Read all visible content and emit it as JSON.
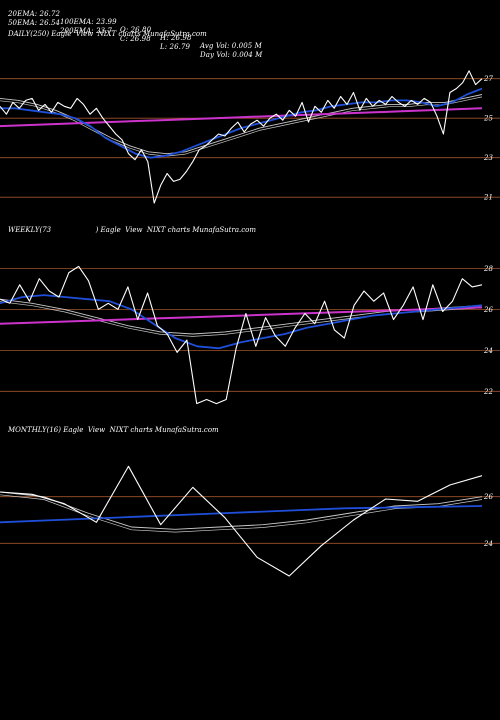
{
  "header": {
    "row1": [
      "20EMA: 26.72",
      "100EMA: 23.99",
      "O: 26.80",
      "H: 26.98",
      "Avg Vol: 0.005 M"
    ],
    "row2": [
      "50EMA: 26.54",
      "200EMA: 23.7",
      "C: 26.98",
      "L: 26.79",
      "Day Vol: 0.004 M"
    ]
  },
  "colors": {
    "background": "#000000",
    "price": "#ffffff",
    "ema_fast": "#1f4fd8",
    "ema_slow": "#cc33cc",
    "guide": "#a0522d",
    "avg": "#c8c8c8"
  },
  "chart_data": [
    {
      "type": "line",
      "title": "DAILY(250) Eagle  View  NIXT charts MunafaSutra.com",
      "ticks": [
        "27",
        "25",
        "23",
        "21"
      ],
      "tick_values": [
        27,
        25,
        23,
        21
      ],
      "ylim": [
        20.2,
        28.3
      ],
      "series": [
        {
          "role": "price",
          "values": [
            25.6,
            25.2,
            25.8,
            25.5,
            25.9,
            26.0,
            25.4,
            25.7,
            25.3,
            25.8,
            25.6,
            25.5,
            26.0,
            25.7,
            25.2,
            25.5,
            25.0,
            24.6,
            24.2,
            23.9,
            23.2,
            22.9,
            23.4,
            22.8,
            20.7,
            21.6,
            22.2,
            21.8,
            21.9,
            22.3,
            22.8,
            23.4,
            23.6,
            23.9,
            24.2,
            24.1,
            24.5,
            24.8,
            24.3,
            24.7,
            24.9,
            24.6,
            25.0,
            25.2,
            24.9,
            25.4,
            25.1,
            25.8,
            24.8,
            25.6,
            25.3,
            25.9,
            25.5,
            26.1,
            25.7,
            26.3,
            25.4,
            26.0,
            25.6,
            25.9,
            25.7,
            26.1,
            25.8,
            25.6,
            25.9,
            25.7,
            26.0,
            25.8,
            25.1,
            24.2,
            26.3,
            26.5,
            26.8,
            27.4,
            26.7,
            27.0
          ]
        },
        {
          "role": "ema_fast",
          "values": [
            25.5,
            25.5,
            25.4,
            25.3,
            25.2,
            25.0,
            24.6,
            24.0,
            23.6,
            23.2,
            23.0,
            23.1,
            23.3,
            23.6,
            23.9,
            24.2,
            24.5,
            24.7,
            24.9,
            25.1,
            25.3,
            25.4,
            25.6,
            25.7,
            25.8,
            25.8,
            25.9,
            25.9,
            25.8,
            25.6,
            25.8,
            26.2,
            26.5
          ]
        },
        {
          "role": "ema_slow",
          "values": [
            24.6,
            24.65,
            24.7,
            24.75,
            24.8,
            24.85,
            24.9,
            24.95,
            25.0,
            25.05,
            25.1,
            25.15,
            25.2,
            25.25,
            25.3,
            25.35,
            25.4,
            25.45,
            25.5
          ]
        },
        {
          "role": "avg",
          "values": [
            26.0,
            25.9,
            25.7,
            25.4,
            25.0,
            24.5,
            24.0,
            23.6,
            23.3,
            23.2,
            23.3,
            23.6,
            23.9,
            24.2,
            24.5,
            24.7,
            24.9,
            25.1,
            25.3,
            25.5,
            25.6,
            25.7,
            25.7,
            25.8,
            25.8,
            26.0,
            26.2
          ]
        }
      ]
    },
    {
      "type": "line",
      "title": "WEEKLY(73                    ) Eagle  View  NIXT charts MunafaSutra.com",
      "ticks": [
        "28",
        "26",
        "24",
        "22"
      ],
      "tick_values": [
        28,
        26,
        24,
        22
      ],
      "ylim": [
        20.5,
        29.0
      ],
      "series": [
        {
          "role": "price",
          "values": [
            26.5,
            26.3,
            27.2,
            26.4,
            27.5,
            26.9,
            26.6,
            27.8,
            28.1,
            27.4,
            26.0,
            26.3,
            26.0,
            27.1,
            25.5,
            26.8,
            25.2,
            24.8,
            23.9,
            24.5,
            21.4,
            21.6,
            21.4,
            21.6,
            24.1,
            25.8,
            24.2,
            25.6,
            24.7,
            24.2,
            25.1,
            25.8,
            25.3,
            26.4,
            25.0,
            24.6,
            26.2,
            26.9,
            26.4,
            26.8,
            25.5,
            26.2,
            27.1,
            25.5,
            27.2,
            25.9,
            26.4,
            27.5,
            27.1,
            27.2
          ]
        },
        {
          "role": "ema_fast",
          "values": [
            26.3,
            26.6,
            26.7,
            26.6,
            26.5,
            26.4,
            26.0,
            25.3,
            24.6,
            24.2,
            24.1,
            24.4,
            24.6,
            24.8,
            25.1,
            25.3,
            25.5,
            25.7,
            25.8,
            25.9,
            26.0,
            26.1,
            26.2
          ]
        },
        {
          "role": "ema_slow",
          "values": [
            25.3,
            25.38,
            25.46,
            25.54,
            25.62,
            25.7,
            25.78,
            25.86,
            25.94,
            26.02,
            26.1
          ]
        },
        {
          "role": "avg",
          "values": [
            26.5,
            26.3,
            26.0,
            25.6,
            25.2,
            24.9,
            24.8,
            24.9,
            25.1,
            25.3,
            25.5,
            25.7,
            25.9,
            26.0,
            26.1,
            26.2
          ]
        }
      ]
    },
    {
      "type": "line",
      "title": "MONTHLY(16) Eagle  View  NIXT charts MunafaSutra.com",
      "ticks": [
        "26",
        "24"
      ],
      "tick_values": [
        26,
        24
      ],
      "ylim": [
        22.0,
        28.0
      ],
      "series": [
        {
          "role": "price",
          "values": [
            26.2,
            26.1,
            25.7,
            24.9,
            27.3,
            24.8,
            26.4,
            25.1,
            23.4,
            22.6,
            23.9,
            25.0,
            25.9,
            25.8,
            26.5,
            26.9
          ]
        },
        {
          "role": "ema_fast",
          "values": [
            24.9,
            25.02,
            25.14,
            25.26,
            25.38,
            25.5,
            25.55,
            25.6
          ]
        },
        {
          "role": "avg",
          "values": [
            26.2,
            26.0,
            25.3,
            24.7,
            24.6,
            24.7,
            24.8,
            25.0,
            25.3,
            25.6,
            25.7,
            26.0
          ]
        }
      ]
    }
  ]
}
